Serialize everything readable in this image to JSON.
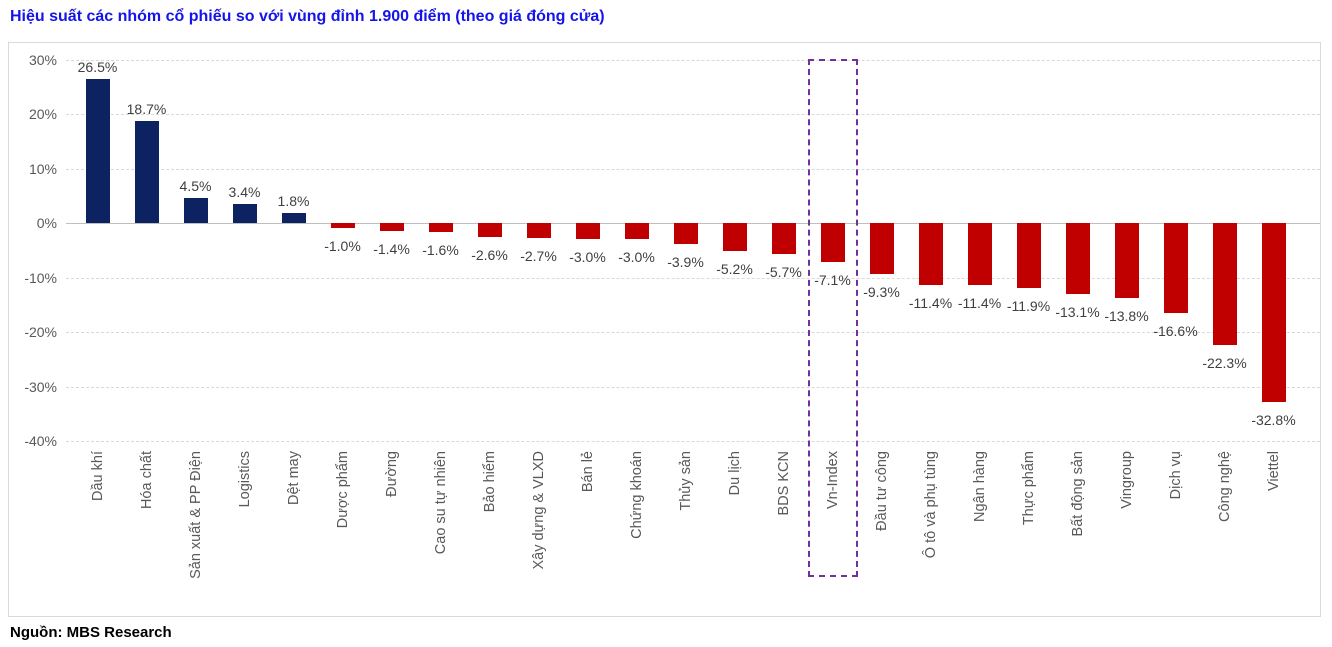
{
  "chart_data": {
    "type": "bar",
    "title": "Hiệu suất các nhóm cổ phiếu so với vùng đỉnh 1.900 điểm (theo giá đóng cửa)",
    "categories": [
      "Dầu khí",
      "Hóa chất",
      "Sản xuất & PP Điện",
      "Logistics",
      "Dệt may",
      "Dược phẩm",
      "Đường",
      "Cao su tự nhiên",
      "Bảo hiểm",
      "Xây dựng & VLXD",
      "Bán lẻ",
      "Chứng khoán",
      "Thủy sản",
      "Du lịch",
      "BDS KCN",
      "Vn-Index",
      "Đầu tư công",
      "Ô tô và phụ tùng",
      "Ngân hàng",
      "Thực phẩm",
      "Bất động sản",
      "Vingroup",
      "Dịch vụ",
      "Công nghệ",
      "Viettel"
    ],
    "values": [
      26.5,
      18.7,
      4.5,
      3.4,
      1.8,
      -1.0,
      -1.4,
      -1.6,
      -2.6,
      -2.7,
      -3.0,
      -3.0,
      -3.9,
      -5.2,
      -5.7,
      -7.1,
      -9.3,
      -11.4,
      -11.4,
      -11.9,
      -13.1,
      -13.8,
      -16.6,
      -22.3,
      -32.8
    ],
    "xlabel": "",
    "ylabel": "",
    "ylim": [
      -40,
      30
    ],
    "yticks": [
      30,
      20,
      10,
      0,
      -10,
      -20,
      -30,
      -40
    ],
    "ytick_labels": [
      "30%",
      "20%",
      "10%",
      "0%",
      "-10%",
      "-20%",
      "-30%",
      "-40%"
    ],
    "grid": "horizontal-dashed",
    "legend": "none",
    "value_label_format": "one-decimal-percent",
    "bar_colors": {
      "positive": "#0D2361",
      "negative": "#C00000"
    },
    "highlight": {
      "category": "Vn-Index",
      "style": "dashed-box",
      "color": "#7030A0"
    }
  },
  "footer": {
    "source": "Nguồn: MBS Research"
  },
  "colors": {
    "title": "#1414EB",
    "axis_text": "#595959",
    "value_text": "#3F3F3F",
    "gridline": "#D9D9D9",
    "zero_line": "#BFBFBF",
    "chart_border": "#D9D9D9",
    "background": "#FFFFFF"
  }
}
